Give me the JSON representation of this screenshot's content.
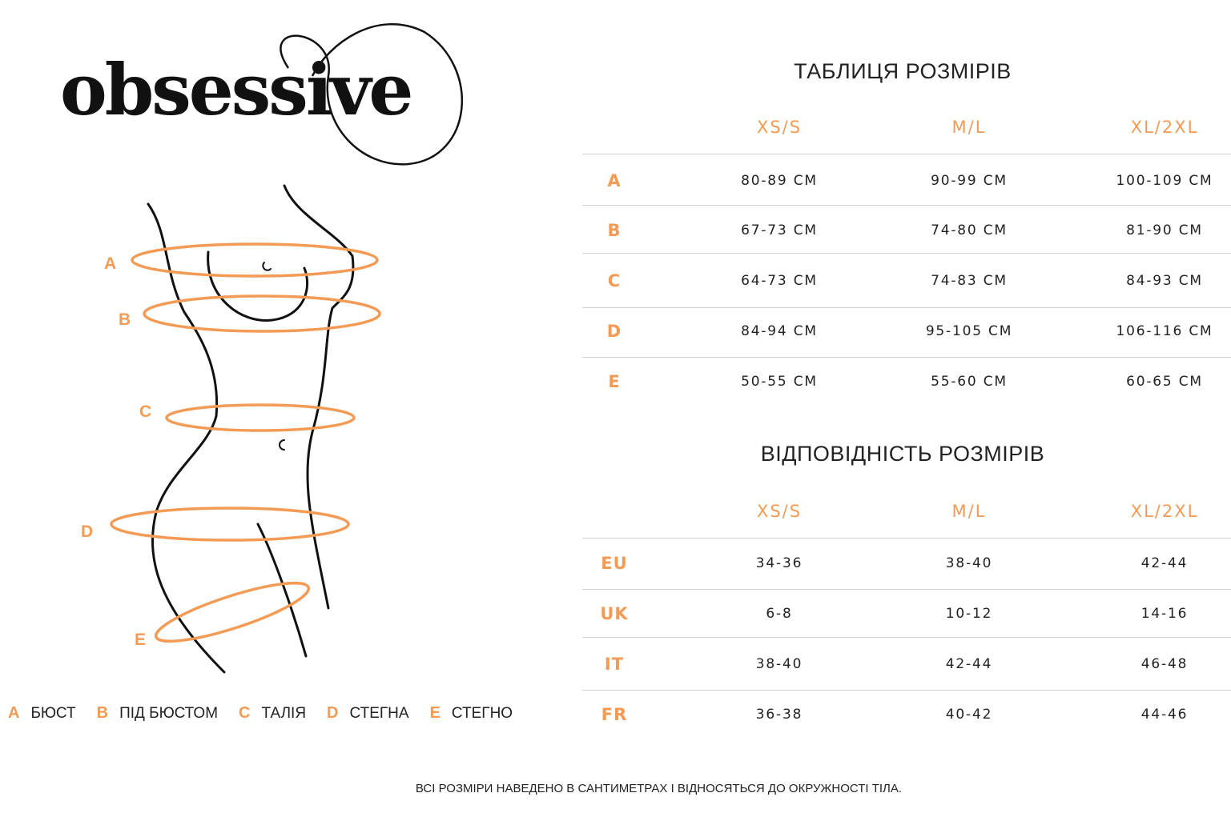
{
  "brand": {
    "logo": "obsessive"
  },
  "accent_color": "#f39a55",
  "figure": {
    "labels": [
      "A",
      "B",
      "C",
      "D",
      "E"
    ]
  },
  "legend": [
    {
      "key": "A",
      "label": "БЮСТ"
    },
    {
      "key": "B",
      "label": "ПІД БЮСТОМ"
    },
    {
      "key": "C",
      "label": "ТАЛІЯ"
    },
    {
      "key": "D",
      "label": "СТЕГНА"
    },
    {
      "key": "E",
      "label": "СТЕГНО"
    }
  ],
  "size_table": {
    "title": "ТАБЛИЦЯ РОЗМІРІВ",
    "columns": [
      "XS/S",
      "M/L",
      "XL/2XL"
    ],
    "rows": [
      {
        "label": "A",
        "values": [
          "80-89 CM",
          "90-99 CM",
          "100-109 CM"
        ]
      },
      {
        "label": "B",
        "values": [
          "67-73 CM",
          "74-80 CM",
          "81-90 CM"
        ]
      },
      {
        "label": "C",
        "values": [
          "64-73 CM",
          "74-83 CM",
          "84-93 CM"
        ]
      },
      {
        "label": "D",
        "values": [
          "84-94 CM",
          "95-105 CM",
          "106-116 CM"
        ]
      },
      {
        "label": "E",
        "values": [
          "50-55 CM",
          "55-60 CM",
          "60-65 CM"
        ]
      }
    ]
  },
  "conversion_table": {
    "title": "ВІДПОВІДНІСТЬ РОЗМІРІВ",
    "columns": [
      "XS/S",
      "M/L",
      "XL/2XL"
    ],
    "rows": [
      {
        "label": "EU",
        "values": [
          "34-36",
          "38-40",
          "42-44"
        ]
      },
      {
        "label": "UK",
        "values": [
          "6-8",
          "10-12",
          "14-16"
        ]
      },
      {
        "label": "IT",
        "values": [
          "38-40",
          "42-44",
          "46-48"
        ]
      },
      {
        "label": "FR",
        "values": [
          "36-38",
          "40-42",
          "44-46"
        ]
      }
    ]
  },
  "footer": "ВСІ РОЗМІРИ НАВЕДЕНО В САНТИМЕТРАХ І ВІДНОСЯТЬСЯ ДО ОКРУЖНОСТІ ТІЛА."
}
